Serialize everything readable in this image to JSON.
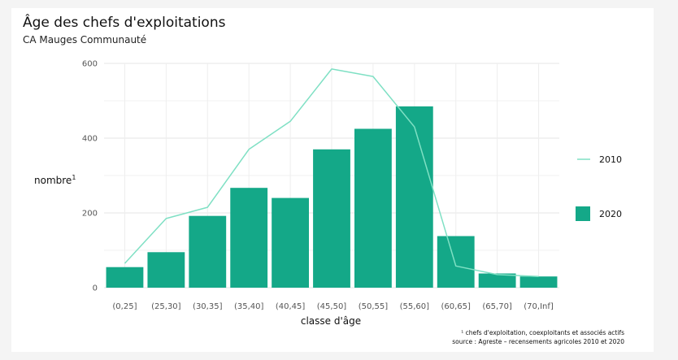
{
  "page": {
    "title": "Âge des chefs d'exploitations",
    "subtitle": "CA Mauges Communauté"
  },
  "chart_data": {
    "type": "bar",
    "title": "Âge des chefs d'exploitations",
    "subtitle": "CA Mauges Communauté",
    "xlabel": "classe d'âge",
    "ylabel": "nombre",
    "ylabel_sup": "1",
    "categories": [
      "(0,25]",
      "(25,30]",
      "(30,35]",
      "(35,40]",
      "(40,45]",
      "(45,50]",
      "(50,55]",
      "(55,60]",
      "(60,65]",
      "(65,70]",
      "(70,Inf]"
    ],
    "ylim": [
      0,
      600
    ],
    "yticks": [
      0,
      200,
      400,
      600
    ],
    "grid": true,
    "legend_position": "right",
    "series": [
      {
        "name": "2010",
        "kind": "line",
        "color": "#7fe0c4",
        "values": [
          65,
          185,
          215,
          370,
          445,
          585,
          565,
          430,
          58,
          35,
          30
        ]
      },
      {
        "name": "2020",
        "kind": "bar",
        "color": "#14a888",
        "values": [
          55,
          95,
          192,
          267,
          240,
          370,
          425,
          485,
          138,
          38,
          30
        ]
      }
    ],
    "footnote": "¹ chefs d'exploitation, coexploitants et associés actifs",
    "source": "source : Agreste – recensements agricoles 2010 et 2020"
  }
}
